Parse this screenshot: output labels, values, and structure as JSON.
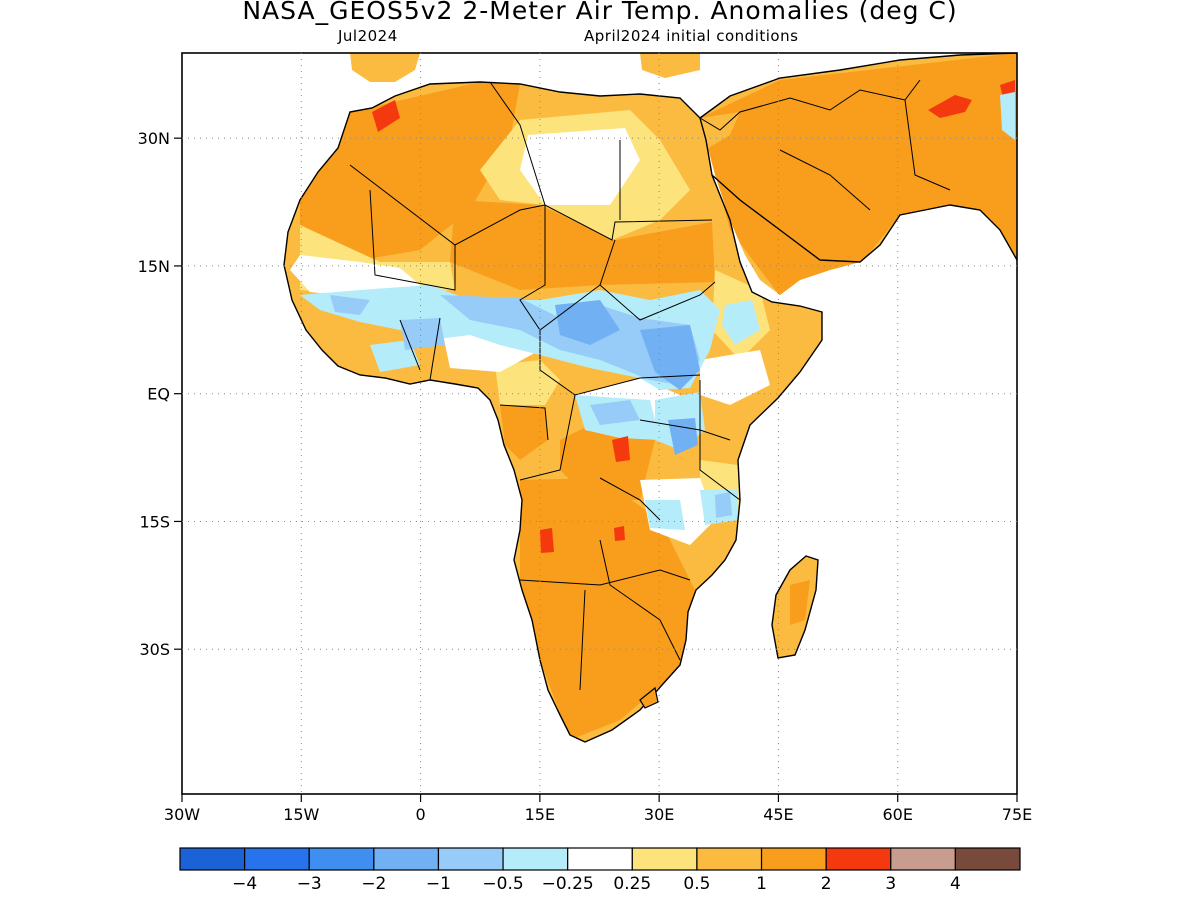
{
  "title": "NASA_GEOS5v2 2-Meter Air Temp. Anomalies (deg C)",
  "subtitle_left": "Jul2024",
  "subtitle_right": "April2024 initial conditions",
  "map": {
    "projection": "lat-lon",
    "lon_range": [
      -30,
      75
    ],
    "lat_range": [
      -47,
      40
    ],
    "grid": "dotted",
    "x_ticks": [
      {
        "value": -30,
        "label": "30W"
      },
      {
        "value": -15,
        "label": "15W"
      },
      {
        "value": 0,
        "label": "0"
      },
      {
        "value": 15,
        "label": "15E"
      },
      {
        "value": 30,
        "label": "30E"
      },
      {
        "value": 45,
        "label": "45E"
      },
      {
        "value": 60,
        "label": "60E"
      },
      {
        "value": 75,
        "label": "75E"
      }
    ],
    "y_ticks": [
      {
        "value": 30,
        "label": "30N"
      },
      {
        "value": 15,
        "label": "15N"
      },
      {
        "value": 0,
        "label": "EQ"
      },
      {
        "value": -15,
        "label": "15S"
      },
      {
        "value": -30,
        "label": "30S"
      }
    ]
  },
  "colorbar": {
    "colors": [
      "#1a62d6",
      "#2673ec",
      "#3f8ff1",
      "#72b0f4",
      "#97cbf8",
      "#b5ecfa",
      "#ffffff",
      "#fde37c",
      "#fbbb40",
      "#f89e1c",
      "#f5390f",
      "#c99c90",
      "#774a3b"
    ],
    "labels": [
      "-4",
      "-3",
      "-2",
      "-1",
      "-0.5",
      "-0.25",
      "0.25",
      "0.5",
      "1",
      "2",
      "3",
      "4"
    ]
  }
}
